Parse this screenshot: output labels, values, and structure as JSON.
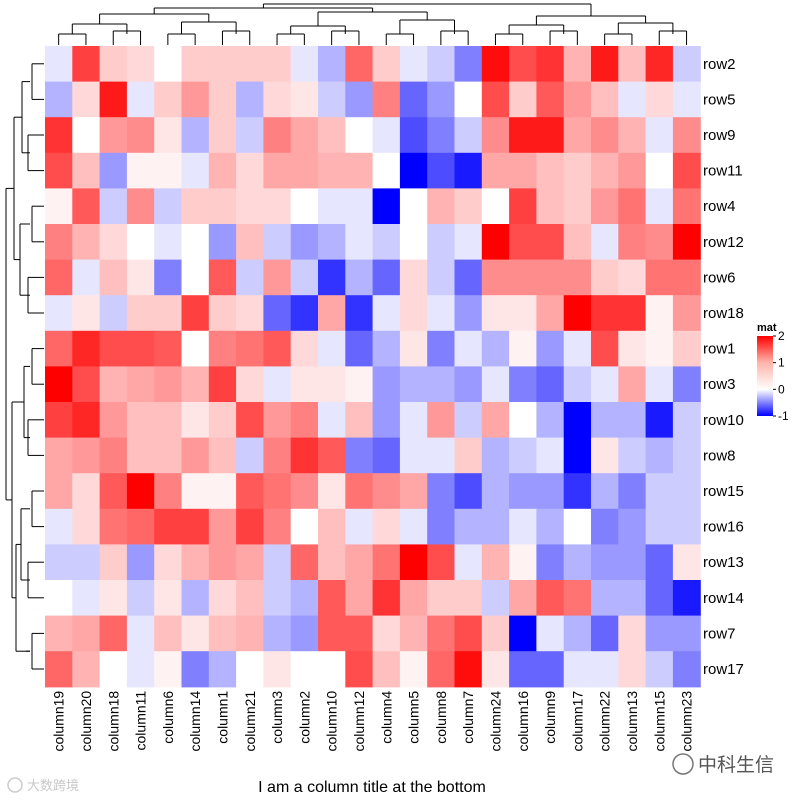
{
  "chart_data": {
    "type": "heatmap",
    "title": "",
    "column_title_bottom": "I am a column title at the bottom",
    "rows": [
      "row2",
      "row5",
      "row9",
      "row11",
      "row4",
      "row12",
      "row6",
      "row18",
      "row1",
      "row3",
      "row10",
      "row8",
      "row15",
      "row16",
      "row13",
      "row14",
      "row7",
      "row17"
    ],
    "columns": [
      "column19",
      "column20",
      "column18",
      "column11",
      "column6",
      "column14",
      "column1",
      "column21",
      "column3",
      "column2",
      "column10",
      "column12",
      "column4",
      "column5",
      "column8",
      "column7",
      "column24",
      "column16",
      "column9",
      "column17",
      "column22",
      "column13",
      "column15",
      "column23"
    ],
    "values": [
      [
        -0.1,
        1.5,
        0.4,
        0.3,
        0.0,
        0.4,
        0.4,
        0.4,
        0.4,
        -0.1,
        -0.3,
        1.2,
        0.4,
        -0.1,
        -0.2,
        -0.5,
        1.9,
        1.4,
        1.6,
        0.6,
        1.8,
        0.5,
        1.7,
        -0.2
      ],
      [
        -0.3,
        0.3,
        1.8,
        -0.1,
        0.4,
        0.8,
        0.4,
        -0.3,
        0.3,
        0.2,
        -0.2,
        -0.4,
        1.0,
        -0.6,
        -0.4,
        0.0,
        1.4,
        0.4,
        1.3,
        0.8,
        0.5,
        -0.1,
        0.3,
        -0.1
      ],
      [
        1.6,
        0.0,
        0.8,
        0.9,
        0.2,
        -0.3,
        0.4,
        -0.2,
        1.0,
        0.7,
        0.5,
        0.0,
        -0.1,
        -0.7,
        -0.5,
        -0.2,
        0.9,
        1.8,
        1.8,
        0.7,
        0.9,
        0.6,
        -0.1,
        0.9
      ],
      [
        1.4,
        0.5,
        -0.4,
        0.1,
        0.1,
        -0.1,
        0.6,
        0.3,
        0.7,
        0.7,
        0.6,
        0.6,
        0.0,
        -1.0,
        -0.7,
        -0.9,
        0.7,
        0.7,
        0.5,
        0.4,
        0.6,
        0.8,
        0.0,
        1.4
      ],
      [
        0.1,
        1.3,
        -0.2,
        0.9,
        -0.2,
        0.4,
        0.4,
        0.3,
        0.3,
        0.0,
        -0.1,
        -0.1,
        -1.0,
        0.0,
        0.6,
        0.4,
        0.0,
        1.5,
        0.5,
        0.4,
        0.8,
        1.1,
        -0.1,
        1.1
      ],
      [
        1.0,
        0.6,
        0.3,
        0.0,
        -0.1,
        0.0,
        -0.4,
        0.5,
        -0.2,
        -0.4,
        -0.3,
        -0.1,
        -0.2,
        0.0,
        -0.2,
        -0.1,
        2.1,
        1.4,
        1.4,
        0.5,
        -0.1,
        1.0,
        0.9,
        2.1
      ],
      [
        1.2,
        -0.1,
        0.5,
        0.2,
        -0.5,
        0.0,
        1.3,
        -0.2,
        0.8,
        -0.2,
        -0.8,
        -0.3,
        -0.6,
        0.3,
        -0.2,
        -0.6,
        0.9,
        0.9,
        0.9,
        0.9,
        0.4,
        0.3,
        1.1,
        1.1
      ],
      [
        -0.1,
        0.2,
        -0.2,
        0.4,
        0.4,
        1.5,
        0.4,
        0.3,
        -0.6,
        -0.8,
        0.7,
        -0.8,
        -0.1,
        0.3,
        -0.1,
        -0.4,
        0.2,
        0.2,
        0.7,
        2.0,
        1.6,
        1.6,
        0.1,
        0.8
      ],
      [
        1.2,
        1.7,
        1.4,
        1.4,
        1.3,
        0.0,
        1.0,
        1.1,
        1.3,
        0.3,
        -0.1,
        -0.6,
        -0.3,
        0.2,
        -0.5,
        -0.1,
        -0.3,
        0.1,
        -0.4,
        -0.1,
        1.4,
        0.2,
        0.1,
        0.4
      ],
      [
        2.0,
        1.4,
        0.6,
        0.7,
        0.8,
        0.6,
        1.5,
        0.3,
        -0.1,
        0.2,
        0.2,
        0.1,
        -0.4,
        -0.3,
        -0.3,
        -0.4,
        -0.1,
        -0.5,
        -0.6,
        -0.2,
        -0.1,
        0.7,
        -0.1,
        -0.5
      ],
      [
        1.5,
        1.7,
        0.8,
        0.5,
        0.5,
        0.2,
        0.4,
        1.4,
        0.8,
        1.0,
        -0.1,
        0.5,
        -0.4,
        -0.1,
        0.8,
        -0.2,
        0.7,
        0.0,
        -0.3,
        -1.0,
        -0.3,
        -0.3,
        -0.9,
        -0.2
      ],
      [
        0.7,
        0.8,
        1.0,
        0.5,
        0.5,
        0.8,
        0.5,
        -0.2,
        1.0,
        1.6,
        1.3,
        -0.5,
        -0.6,
        -0.1,
        -0.1,
        0.4,
        -0.3,
        -0.2,
        -0.1,
        -1.0,
        0.2,
        -0.2,
        -0.3,
        -0.2
      ],
      [
        0.7,
        0.3,
        1.3,
        2.0,
        1.0,
        0.1,
        0.1,
        1.3,
        1.1,
        0.9,
        0.2,
        1.1,
        0.9,
        0.7,
        -0.5,
        -0.7,
        -0.3,
        -0.4,
        -0.4,
        -0.8,
        -0.3,
        -0.5,
        -0.2,
        -0.2
      ],
      [
        -0.1,
        0.3,
        1.1,
        1.2,
        1.5,
        1.5,
        0.8,
        1.5,
        1.0,
        0.0,
        0.5,
        -0.1,
        0.3,
        -0.1,
        -0.5,
        -0.3,
        -0.3,
        -0.1,
        -0.3,
        0.0,
        -0.5,
        -0.4,
        -0.2,
        -0.2
      ],
      [
        -0.2,
        -0.2,
        0.4,
        -0.4,
        0.3,
        0.6,
        0.8,
        0.7,
        -0.2,
        1.2,
        0.5,
        0.7,
        1.1,
        2.0,
        1.4,
        -0.1,
        0.6,
        0.1,
        -0.5,
        -0.3,
        -0.4,
        -0.4,
        -0.6,
        0.2
      ],
      [
        0.0,
        -0.1,
        0.2,
        -0.2,
        0.2,
        -0.3,
        0.3,
        0.5,
        -0.2,
        -0.3,
        1.3,
        0.7,
        1.6,
        0.7,
        0.4,
        0.4,
        -0.2,
        0.7,
        1.3,
        1.1,
        -0.3,
        -0.3,
        -0.6,
        -0.9
      ],
      [
        0.6,
        0.7,
        1.2,
        -0.1,
        0.5,
        0.2,
        0.5,
        0.6,
        -0.3,
        -0.4,
        1.3,
        1.3,
        0.3,
        0.6,
        1.1,
        1.4,
        0.4,
        -1.0,
        -0.1,
        -0.3,
        -0.6,
        0.3,
        -0.4,
        -0.4
      ]
    ],
    "extra_row": [
      1.2,
      0.6,
      0.0,
      -0.1,
      0.1,
      -0.5,
      -0.3,
      0.0,
      0.2,
      0.0,
      0.0,
      1.4,
      0.5,
      0.1,
      1.2,
      1.9,
      0.2,
      -0.6,
      -0.6,
      -0.1,
      -0.1,
      0.3,
      -0.2,
      -0.5
    ],
    "legend": {
      "title": "mat",
      "ticks": [
        2,
        1,
        0,
        -1
      ],
      "range": [
        -1,
        2
      ]
    },
    "colors": {
      "low": "#0000ff",
      "mid": "#ffffff",
      "high": "#ff0000"
    },
    "dendrograms": [
      "top",
      "left"
    ]
  },
  "watermarks": {
    "left": "大数跨境",
    "right": "中科生信"
  }
}
